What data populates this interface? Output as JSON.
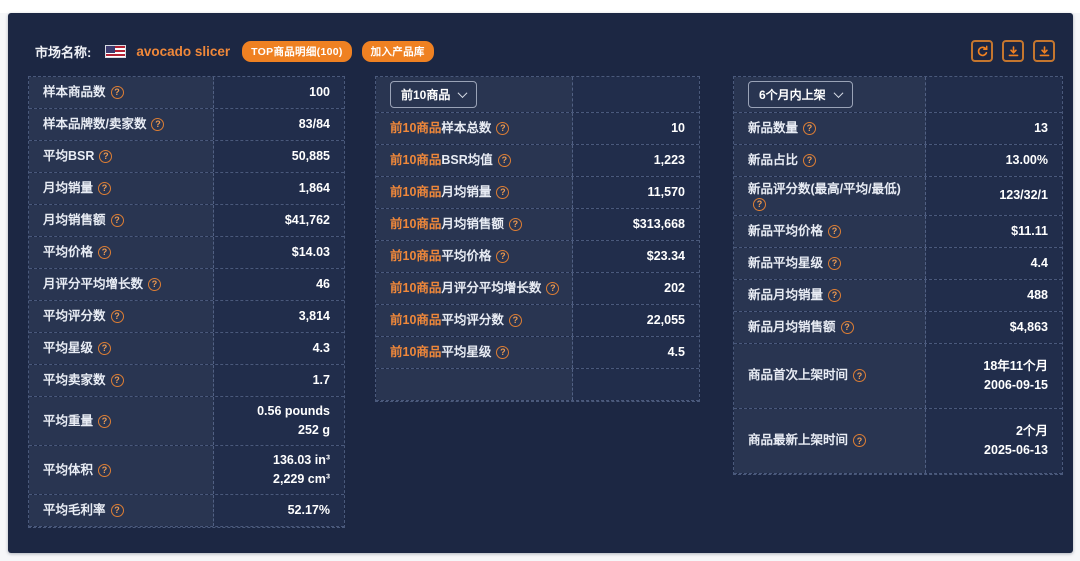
{
  "colors": {
    "accent_orange": "#ef8122",
    "orange_text": "#f0883a",
    "panel_bg": "#1c2743",
    "label_cell_bg": "#293551",
    "value_cell_bg": "#212d4b"
  },
  "header": {
    "market_label": "市场名称:",
    "flag": "us-flag",
    "market_name": "avocado slicer",
    "badges": [
      {
        "label": "TOP商品明细(100)"
      },
      {
        "label": "加入产品库"
      }
    ],
    "toolbar_icons": [
      "refresh",
      "export",
      "download"
    ]
  },
  "tables": {
    "left": {
      "rows": [
        {
          "label": "样本商品数",
          "value": "100"
        },
        {
          "label": "样本品牌数/卖家数",
          "value": "83/84"
        },
        {
          "label": "平均BSR",
          "value": "50,885"
        },
        {
          "label": "月均销量",
          "value": "1,864"
        },
        {
          "label": "月均销售额",
          "value": "$41,762"
        },
        {
          "label": "平均价格",
          "value": "$14.03"
        },
        {
          "label": "月评分平均增长数",
          "value": "46"
        },
        {
          "label": "平均评分数",
          "value": "3,814"
        },
        {
          "label": "平均星级",
          "value": "4.3"
        },
        {
          "label": "平均卖家数",
          "value": "1.7"
        },
        {
          "label": "平均重量",
          "value": "0.56 pounds",
          "value2": "252 g"
        },
        {
          "label": "平均体积",
          "value": "136.03 in³",
          "value2": "2,229 cm³"
        },
        {
          "label": "平均毛利率",
          "value": "52.17%"
        }
      ]
    },
    "middle": {
      "dropdown": "前10商品",
      "rows": [
        {
          "prefix": "前10商品",
          "label": "样本总数",
          "value": "10"
        },
        {
          "prefix": "前10商品",
          "label": "BSR均值",
          "value": "1,223"
        },
        {
          "prefix": "前10商品",
          "label": "月均销量",
          "value": "11,570"
        },
        {
          "prefix": "前10商品",
          "label": "月均销售额",
          "value": "$313,668"
        },
        {
          "prefix": "前10商品",
          "label": "平均价格",
          "value": "$23.34"
        },
        {
          "prefix": "前10商品",
          "label": "月评分平均增长数",
          "value": "202"
        },
        {
          "prefix": "前10商品",
          "label": "平均评分数",
          "value": "22,055"
        },
        {
          "prefix": "前10商品",
          "label": "平均星级",
          "value": "4.5"
        },
        {
          "empty": true
        }
      ]
    },
    "right": {
      "dropdown": "6个月内上架",
      "rows": [
        {
          "label": "新品数量",
          "value": "13"
        },
        {
          "label": "新品占比",
          "value": "13.00%"
        },
        {
          "label": "新品评分数(最高/平均/最低)",
          "value": "123/32/1"
        },
        {
          "label": "新品平均价格",
          "value": "$11.11"
        },
        {
          "label": "新品平均星级",
          "value": "4.4"
        },
        {
          "label": "新品月均销量",
          "value": "488"
        },
        {
          "label": "新品月均销售额",
          "value": "$4,863"
        },
        {
          "label": "商品首次上架时间",
          "value": "18年11个月",
          "value2": "2006-09-15"
        },
        {
          "label": "商品最新上架时间",
          "value": "2个月",
          "value2": "2025-06-13"
        }
      ]
    }
  }
}
